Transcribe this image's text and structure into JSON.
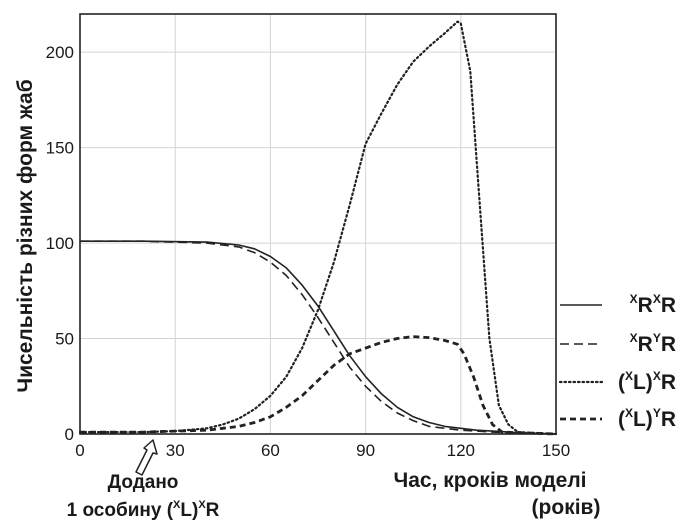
{
  "chart_data": {
    "type": "line",
    "xlabel_line1": "Час, кроків моделі",
    "xlabel_line2": "(років)",
    "ylabel": "Чисельність різних форм жаб",
    "xlim": [
      0,
      150
    ],
    "ylim": [
      0,
      220
    ],
    "xticks": [
      0,
      30,
      60,
      90,
      120,
      150
    ],
    "yticks": [
      0,
      50,
      100,
      150,
      200
    ],
    "grid": true,
    "legend_position": "right",
    "series": [
      {
        "name": "xRxR",
        "legend": {
          "base1": "",
          "sup1": "X",
          "base2": "R",
          "sup2": "X",
          "base3": "R"
        },
        "style": "solid",
        "points": [
          [
            0,
            101
          ],
          [
            20,
            101
          ],
          [
            40,
            100.5
          ],
          [
            50,
            99
          ],
          [
            55,
            97
          ],
          [
            60,
            93
          ],
          [
            65,
            87
          ],
          [
            70,
            78
          ],
          [
            75,
            67
          ],
          [
            80,
            54
          ],
          [
            85,
            41
          ],
          [
            90,
            30
          ],
          [
            95,
            21
          ],
          [
            100,
            14
          ],
          [
            105,
            9
          ],
          [
            110,
            6
          ],
          [
            115,
            4
          ],
          [
            120,
            3
          ],
          [
            125,
            2
          ],
          [
            130,
            1.5
          ],
          [
            140,
            0.5
          ],
          [
            150,
            0
          ]
        ]
      },
      {
        "name": "xRyR",
        "legend": {
          "base1": "",
          "sup1": "X",
          "base2": "R",
          "sup2": "Y",
          "base3": "R"
        },
        "style": "dashed",
        "points": [
          [
            0,
            101
          ],
          [
            20,
            101
          ],
          [
            40,
            100
          ],
          [
            50,
            98
          ],
          [
            55,
            95
          ],
          [
            60,
            90
          ],
          [
            65,
            83
          ],
          [
            70,
            73
          ],
          [
            75,
            61
          ],
          [
            80,
            48
          ],
          [
            85,
            35
          ],
          [
            90,
            25
          ],
          [
            95,
            17
          ],
          [
            100,
            11
          ],
          [
            105,
            7
          ],
          [
            110,
            4
          ],
          [
            115,
            3
          ],
          [
            120,
            2
          ],
          [
            125,
            1.5
          ],
          [
            130,
            1
          ],
          [
            140,
            0.5
          ],
          [
            150,
            0
          ]
        ]
      },
      {
        "name": "(xL)xR",
        "legend": {
          "base1": "(",
          "sup1": "X",
          "base2": "L)",
          "sup2": "X",
          "base3": "R"
        },
        "style": "dotted",
        "points": [
          [
            0,
            1
          ],
          [
            20,
            1
          ],
          [
            30,
            1.5
          ],
          [
            40,
            3
          ],
          [
            45,
            5
          ],
          [
            50,
            8
          ],
          [
            55,
            13
          ],
          [
            60,
            20
          ],
          [
            65,
            30
          ],
          [
            70,
            45
          ],
          [
            75,
            65
          ],
          [
            80,
            90
          ],
          [
            85,
            120
          ],
          [
            90,
            152
          ],
          [
            95,
            168
          ],
          [
            100,
            183
          ],
          [
            105,
            195
          ],
          [
            110,
            203
          ],
          [
            115,
            210
          ],
          [
            119,
            216
          ],
          [
            120,
            215
          ],
          [
            123,
            190
          ],
          [
            126,
            120
          ],
          [
            129,
            50
          ],
          [
            132,
            15
          ],
          [
            135,
            5
          ],
          [
            138,
            1
          ],
          [
            150,
            0
          ]
        ]
      },
      {
        "name": "(xL)yR",
        "legend": {
          "base1": "(",
          "sup1": "X",
          "base2": "L)",
          "sup2": "Y",
          "base3": "R"
        },
        "style": "dash-heavy",
        "points": [
          [
            0,
            1
          ],
          [
            20,
            1
          ],
          [
            30,
            1.5
          ],
          [
            40,
            2
          ],
          [
            45,
            3
          ],
          [
            50,
            4
          ],
          [
            55,
            6
          ],
          [
            60,
            9
          ],
          [
            65,
            14
          ],
          [
            70,
            20
          ],
          [
            75,
            28
          ],
          [
            80,
            36
          ],
          [
            85,
            42
          ],
          [
            90,
            45
          ],
          [
            95,
            48
          ],
          [
            100,
            50
          ],
          [
            105,
            51
          ],
          [
            110,
            50.5
          ],
          [
            115,
            49
          ],
          [
            119,
            47
          ],
          [
            121,
            42
          ],
          [
            124,
            30
          ],
          [
            127,
            15
          ],
          [
            130,
            5
          ],
          [
            133,
            1
          ],
          [
            150,
            0
          ]
        ]
      }
    ],
    "annotation": {
      "line1": "Додано",
      "line2_prefix": "1 особину (",
      "line2_sup1": "X",
      "line2_mid": "L)",
      "line2_sup2": "X",
      "line2_suffix": "R",
      "x": 23
    }
  }
}
